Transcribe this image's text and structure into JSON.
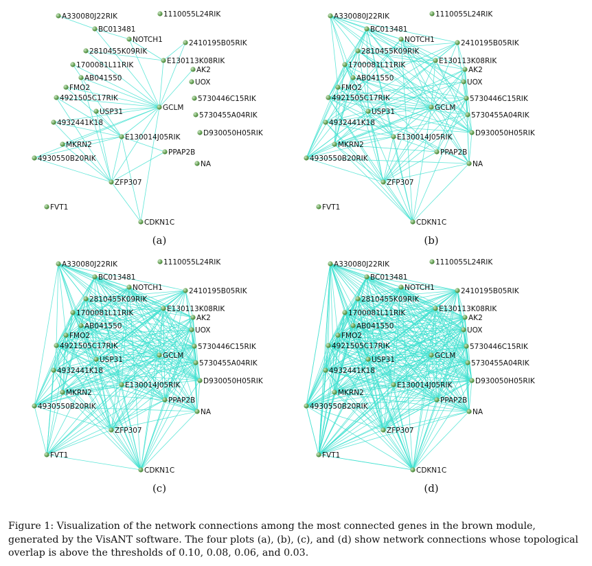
{
  "diagram": {
    "nodes": [
      {
        "id": "A330080J22RIK",
        "label": "A330080J22RIK"
      },
      {
        "id": "1110055L24RIK",
        "label": "1110055L24RIK"
      },
      {
        "id": "BC013481",
        "label": "BC013481"
      },
      {
        "id": "NOTCH1",
        "label": "NOTCH1"
      },
      {
        "id": "2410195B05RIK",
        "label": "2410195B05RIK"
      },
      {
        "id": "2810455K09RIK",
        "label": "2810455K09RIK"
      },
      {
        "id": "E130113K08RIK",
        "label": "E130113K08RIK"
      },
      {
        "id": "1700081L11RIK",
        "label": "1700081L11RIK"
      },
      {
        "id": "AK2",
        "label": "AK2"
      },
      {
        "id": "AB041550",
        "label": "AB041550"
      },
      {
        "id": "UOX",
        "label": "UOX"
      },
      {
        "id": "FMO2",
        "label": "FMO2"
      },
      {
        "id": "4921505C17RIK",
        "label": "4921505C17RIK"
      },
      {
        "id": "5730446C15RIK",
        "label": "5730446C15RIK"
      },
      {
        "id": "GCLM",
        "label": "GCLM"
      },
      {
        "id": "USP31",
        "label": "USP31"
      },
      {
        "id": "5730455A04RIK",
        "label": "5730455A04RIK"
      },
      {
        "id": "4932441K18",
        "label": "4932441K18"
      },
      {
        "id": "D930050H05RIK",
        "label": "D930050H05RIK"
      },
      {
        "id": "E130014J05RIK",
        "label": "E130014J05RIK"
      },
      {
        "id": "MKRN2",
        "label": "MKRN2"
      },
      {
        "id": "PPAP2B",
        "label": "PPAP2B"
      },
      {
        "id": "4930550B20RIK",
        "label": "4930550B20RIK"
      },
      {
        "id": "NA",
        "label": "NA"
      },
      {
        "id": "ZFP307",
        "label": "ZFP307"
      },
      {
        "id": "FVT1",
        "label": "FVT1"
      },
      {
        "id": "CDKN1C",
        "label": "CDKN1C"
      }
    ],
    "panels": [
      {
        "label": "(a)",
        "threshold": 0.1
      },
      {
        "label": "(b)",
        "threshold": 0.08
      },
      {
        "label": "(c)",
        "threshold": 0.06
      },
      {
        "label": "(d)",
        "threshold": 0.03
      }
    ],
    "colors": {
      "edge": "#40e0d0",
      "node_light": "#cfe8c8",
      "node_dark": "#3f7a32"
    }
  },
  "caption": "Figure 1: Visualization of the network connections among the most connected genes in the brown module, generated by the VisANT software. The four plots (a), (b), (c), and (d) show network connections whose topological overlap is above the thresholds of 0.10, 0.08, 0.06, and 0.03."
}
